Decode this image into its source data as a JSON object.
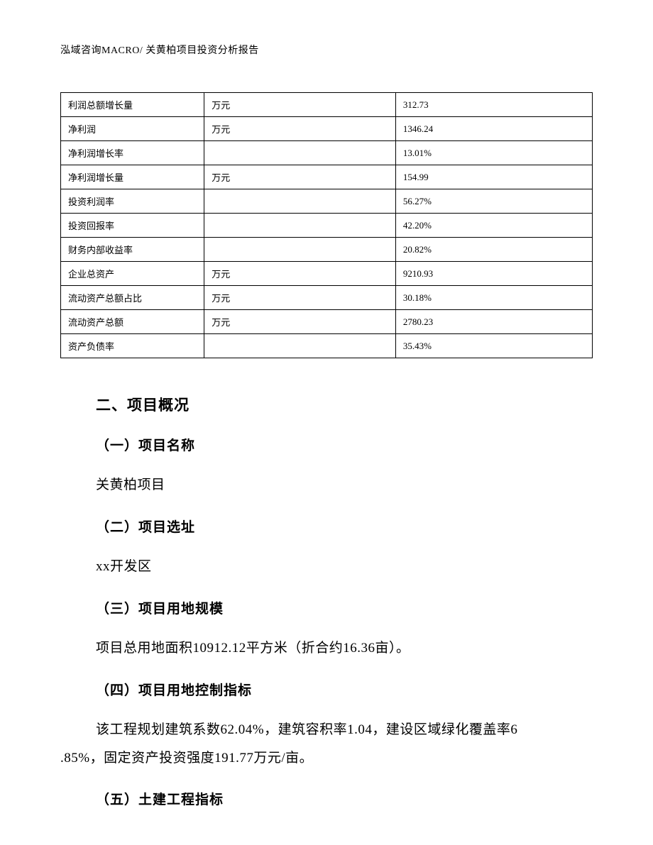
{
  "header": {
    "text": "泓域咨询MACRO/    关黄柏项目投资分析报告"
  },
  "table": {
    "columns": {
      "col1_width": "27%",
      "col2_width": "36%",
      "col3_width": "37%"
    },
    "border_color": "#000000",
    "font_size": 13,
    "rows": [
      {
        "label": "利润总额增长量",
        "unit": "万元",
        "value": "312.73"
      },
      {
        "label": "净利润",
        "unit": "万元",
        "value": "1346.24"
      },
      {
        "label": "净利润增长率",
        "unit": "",
        "value": "13.01%"
      },
      {
        "label": "净利润增长量",
        "unit": "万元",
        "value": "154.99"
      },
      {
        "label": "投资利润率",
        "unit": "",
        "value": "56.27%"
      },
      {
        "label": "投资回报率",
        "unit": "",
        "value": "42.20%"
      },
      {
        "label": "财务内部收益率",
        "unit": "",
        "value": "20.82%"
      },
      {
        "label": "企业总资产",
        "unit": "万元",
        "value": "9210.93"
      },
      {
        "label": "流动资产总额占比",
        "unit": "万元",
        "value": "30.18%"
      },
      {
        "label": "流动资产总额",
        "unit": "万元",
        "value": "2780.23"
      },
      {
        "label": "资产负债率",
        "unit": "",
        "value": "35.43%"
      }
    ]
  },
  "sections": {
    "main_heading": "二、项目概况",
    "s1": {
      "heading": "（一）项目名称",
      "text": "关黄柏项目"
    },
    "s2": {
      "heading": "（二）项目选址",
      "text": "xx开发区"
    },
    "s3": {
      "heading": "（三）项目用地规模",
      "text": "项目总用地面积10912.12平方米（折合约16.36亩）。"
    },
    "s4": {
      "heading": "（四）项目用地控制指标",
      "text_line1": "该工程规划建筑系数62.04%，建筑容积率1.04，建设区域绿化覆盖率6",
      "text_line2": ".85%，固定资产投资强度191.77万元/亩。"
    },
    "s5": {
      "heading": "（五）土建工程指标"
    }
  },
  "styles": {
    "background_color": "#ffffff",
    "text_color": "#000000",
    "heading_font": "SimHei",
    "body_font": "SimSun",
    "heading_fontsize": 21,
    "subheading_fontsize": 19,
    "body_fontsize": 19,
    "table_fontsize": 13,
    "header_fontsize": 14
  }
}
